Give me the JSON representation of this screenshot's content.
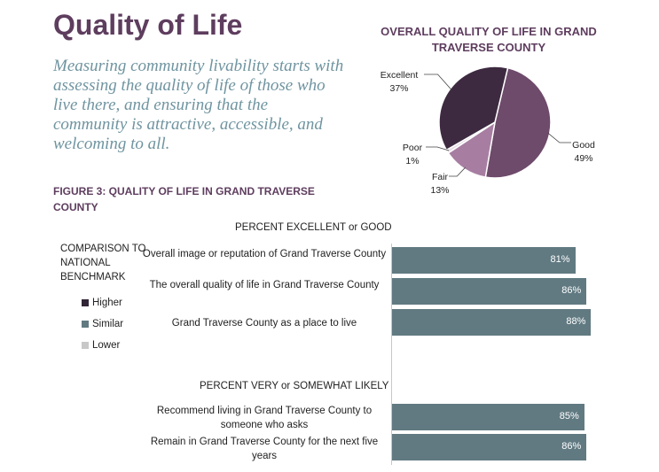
{
  "title": "Quality of Life",
  "intro": "Measuring community livability starts with assessing the quality of life of those who live there, and ensuring that the community is attractive, accessible, and welcoming to all.",
  "figure_title": "FIGURE 3: QUALITY OF LIFE IN GRAND TRAVERSE COUNTY",
  "legend": {
    "title": "COMPARISON TO NATIONAL BENCHMARK",
    "items": [
      {
        "label": "Higher",
        "color": "#2f2535"
      },
      {
        "label": "Similar",
        "color": "#617a82"
      },
      {
        "label": "Lower",
        "color": "#c8c8c8"
      }
    ]
  },
  "chart_data": [
    {
      "type": "pie",
      "title": "OVERALL QUALITY OF LIFE IN GRAND TRAVERSE COUNTY",
      "slices": [
        {
          "label": "Excellent",
          "value": 37,
          "display": "37%",
          "color": "#3d2a40"
        },
        {
          "label": "Good",
          "value": 49,
          "display": "49%",
          "color": "#6e4a6b"
        },
        {
          "label": "Fair",
          "value": 13,
          "display": "13%",
          "color": "#a77ea2"
        },
        {
          "label": "Poor",
          "value": 1,
          "display": "1%",
          "color": "#e8dde6"
        }
      ]
    },
    {
      "type": "bar",
      "orientation": "horizontal",
      "xlim": [
        0,
        100
      ],
      "groups": [
        {
          "header": "PERCENT EXCELLENT or GOOD",
          "bars": [
            {
              "label": "Overall image or reputation of Grand Traverse County",
              "value": 81,
              "display": "81%",
              "benchmark": "Similar"
            },
            {
              "label": "The overall quality of life in Grand Traverse County",
              "value": 86,
              "display": "86%",
              "benchmark": "Similar"
            },
            {
              "label": "Grand Traverse County as a place to live",
              "value": 88,
              "display": "88%",
              "benchmark": "Similar"
            }
          ]
        },
        {
          "header": "PERCENT VERY or SOMEWHAT LIKELY",
          "bars": [
            {
              "label": "Recommend living in Grand Traverse County to someone who asks",
              "value": 85,
              "display": "85%",
              "benchmark": "Similar"
            },
            {
              "label": "Remain in Grand Traverse County for the next five years",
              "value": 86,
              "display": "86%",
              "benchmark": "Similar"
            }
          ]
        }
      ]
    }
  ]
}
